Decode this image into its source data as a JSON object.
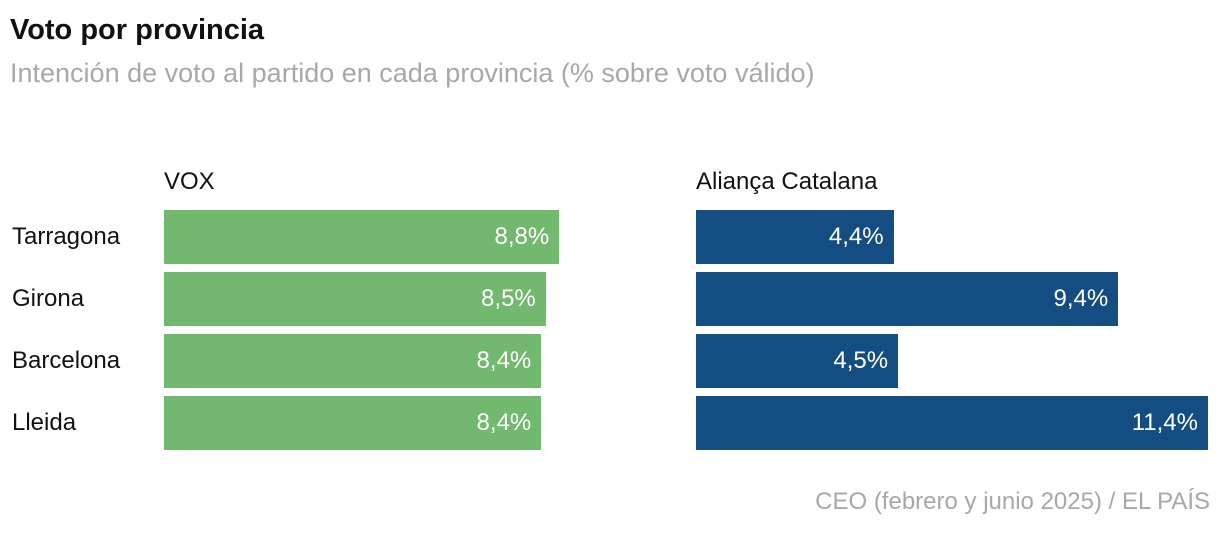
{
  "chart_data": {
    "type": "bar",
    "orientation": "horizontal",
    "title": "Voto por provincia",
    "subtitle": "Intención de voto al partido en cada provincia (% sobre voto válido)",
    "categories": [
      "Tarragona",
      "Girona",
      "Barcelona",
      "Lleida"
    ],
    "series": [
      {
        "name": "VOX",
        "color": "#72b96f",
        "values": [
          8.8,
          8.5,
          8.4,
          8.4
        ],
        "labels": [
          "8,8%",
          "8,5%",
          "8,4%",
          "8,4%"
        ]
      },
      {
        "name": "Aliança Catalana",
        "color": "#134d82",
        "values": [
          4.4,
          9.4,
          4.5,
          11.4
        ],
        "labels": [
          "4,4%",
          "9,4%",
          "4,5%",
          "11,4%"
        ]
      }
    ],
    "xlim": [
      0,
      11.4
    ],
    "source": "CEO (febrero y junio 2025) / EL PAÍS"
  }
}
